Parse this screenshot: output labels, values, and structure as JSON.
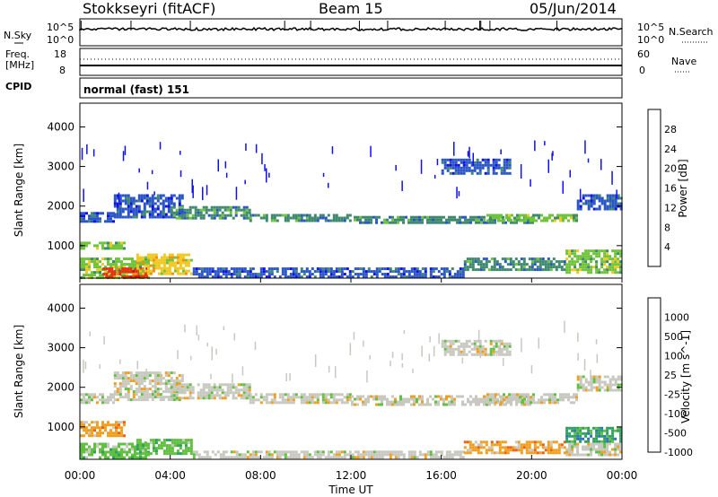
{
  "header": {
    "station": "Stokkseyri (fitACF)",
    "beam": "Beam 15",
    "date": "05/Jun/2014"
  },
  "strip_noise": {
    "left_label": "N.Sky",
    "right_label": "N.Search",
    "tick_top": "10^5",
    "tick_bottom": "10^0",
    "right_tick_top": "10^5",
    "right_tick_bottom": "10^0"
  },
  "strip_freq": {
    "left_label_1": "Freq.",
    "left_label_2": "[MHz]",
    "tick_top": "18",
    "tick_bottom": "8",
    "right_label": "Nave",
    "right_tick_top": "60",
    "right_tick_bottom": "0"
  },
  "strip_cpid": {
    "left_label": "CPID",
    "mode_text": "normal (fast) 151"
  },
  "chart_data": [
    {
      "type": "heatmap",
      "name": "power",
      "ylabel": "Slant Range [km]",
      "ylim": [
        180,
        4600
      ],
      "yticks": [
        "1000",
        "2000",
        "3000",
        "4000"
      ],
      "colorbar_label": "Power [dB]",
      "colorbar_ticks": [
        "4",
        "8",
        "12",
        "16",
        "20",
        "24",
        "28"
      ],
      "colors": [
        "#1010e8",
        "#2b56c8",
        "#3f8a6e",
        "#6fc43c",
        "#f0c820",
        "#f08c10",
        "#e83010",
        "#f00000"
      ],
      "regions": [
        {
          "t0": 0.0,
          "t1": 1.5,
          "r0": 1600,
          "r1": 1850,
          "level": 1
        },
        {
          "t0": 1.5,
          "t1": 4.5,
          "r0": 1700,
          "r1": 2300,
          "level": 1
        },
        {
          "t0": 4.0,
          "t1": 7.5,
          "r0": 1700,
          "r1": 2000,
          "level": 2
        },
        {
          "t0": 7.5,
          "t1": 12.0,
          "r0": 1600,
          "r1": 1800,
          "level": 2
        },
        {
          "t0": 12.0,
          "t1": 20.0,
          "r0": 1550,
          "r1": 1750,
          "level": 2
        },
        {
          "t0": 18.0,
          "t1": 22.0,
          "r0": 1600,
          "r1": 1800,
          "level": 3
        },
        {
          "t0": 0.0,
          "t1": 2.0,
          "r0": 900,
          "r1": 1100,
          "level": 3
        },
        {
          "t0": 0.0,
          "t1": 3.0,
          "r0": 200,
          "r1": 700,
          "level": 3
        },
        {
          "t0": 1.0,
          "t1": 3.0,
          "r0": 200,
          "r1": 450,
          "level": 6
        },
        {
          "t0": 2.5,
          "t1": 5.0,
          "r0": 300,
          "r1": 800,
          "level": 4
        },
        {
          "t0": 5.0,
          "t1": 17.0,
          "r0": 200,
          "r1": 450,
          "level": 1
        },
        {
          "t0": 17.0,
          "t1": 21.5,
          "r0": 400,
          "r1": 700,
          "level": 2
        },
        {
          "t0": 21.5,
          "t1": 24.0,
          "r0": 300,
          "r1": 900,
          "level": 3
        },
        {
          "t0": 16.0,
          "t1": 19.0,
          "r0": 2800,
          "r1": 3200,
          "level": 1
        },
        {
          "t0": 22.0,
          "t1": 24.0,
          "r0": 1900,
          "r1": 2300,
          "level": 1
        }
      ]
    },
    {
      "type": "heatmap",
      "name": "velocity",
      "ylabel": "Slant Range [km]",
      "ylim": [
        180,
        4600
      ],
      "yticks": [
        "1000",
        "2000",
        "3000",
        "4000"
      ],
      "colorbar_label": "Velocity [m s^-1]",
      "colorbar_ticks": [
        "1000",
        "500",
        "100",
        "25",
        "-25",
        "-100",
        "-500",
        "-1000"
      ],
      "colors": [
        "#2020c0",
        "#3070c0",
        "#30a060",
        "#60c040",
        "#c8c8c0",
        "#f0a020",
        "#f06010",
        "#f00010"
      ],
      "regions": [
        {
          "t0": 0.0,
          "t1": 1.5,
          "r0": 1600,
          "r1": 1850,
          "level": 4
        },
        {
          "t0": 1.5,
          "t1": 4.5,
          "r0": 1700,
          "r1": 2400,
          "level": 4
        },
        {
          "t0": 4.0,
          "t1": 7.5,
          "r0": 1750,
          "r1": 2100,
          "level": 4
        },
        {
          "t0": 7.5,
          "t1": 12.0,
          "r0": 1600,
          "r1": 1850,
          "level": 4
        },
        {
          "t0": 12.0,
          "t1": 20.0,
          "r0": 1550,
          "r1": 1800,
          "level": 4
        },
        {
          "t0": 18.0,
          "t1": 22.0,
          "r0": 1600,
          "r1": 1850,
          "level": 4
        },
        {
          "t0": 0.0,
          "t1": 2.0,
          "r0": 800,
          "r1": 1150,
          "level": 5
        },
        {
          "t0": 0.0,
          "t1": 3.0,
          "r0": 200,
          "r1": 600,
          "level": 3
        },
        {
          "t0": 2.5,
          "t1": 5.0,
          "r0": 300,
          "r1": 700,
          "level": 3
        },
        {
          "t0": 5.0,
          "t1": 17.0,
          "r0": 200,
          "r1": 400,
          "level": 4
        },
        {
          "t0": 17.0,
          "t1": 21.5,
          "r0": 350,
          "r1": 650,
          "level": 5
        },
        {
          "t0": 21.5,
          "t1": 24.0,
          "r0": 600,
          "r1": 1000,
          "level": 2
        },
        {
          "t0": 21.5,
          "t1": 24.0,
          "r0": 300,
          "r1": 600,
          "level": 4
        },
        {
          "t0": 16.0,
          "t1": 19.0,
          "r0": 2800,
          "r1": 3200,
          "level": 4
        },
        {
          "t0": 22.0,
          "t1": 24.0,
          "r0": 1900,
          "r1": 2300,
          "level": 4
        }
      ]
    }
  ],
  "xaxis": {
    "label": "Time UT",
    "ticks": [
      "00:00",
      "04:00",
      "08:00",
      "12:00",
      "16:00",
      "20:00",
      "00:00"
    ]
  }
}
